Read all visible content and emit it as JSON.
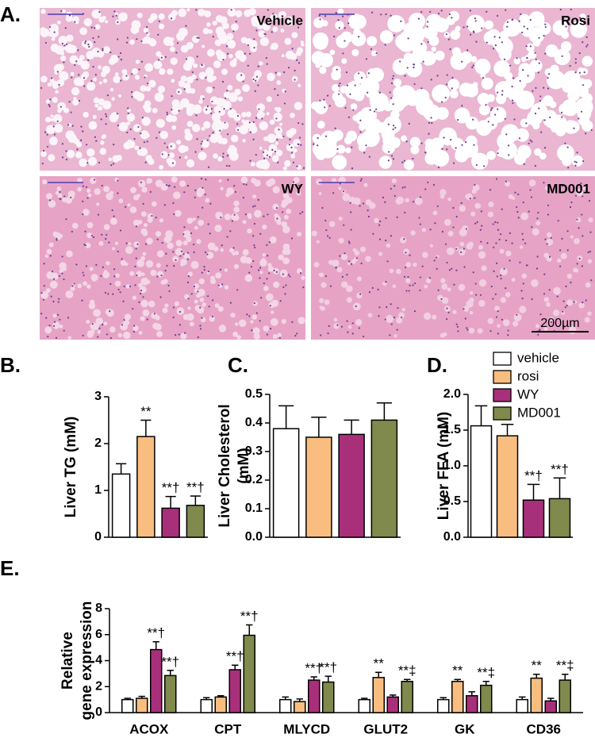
{
  "figure": {
    "panel_labels": [
      "A.",
      "B.",
      "C.",
      "D.",
      "E."
    ],
    "image_labels": [
      "Vehicle",
      "Rosi",
      "WY",
      "MD001"
    ],
    "scale_bar": "200µm"
  },
  "chart_data": [
    {
      "type": "bar",
      "ylabel": [
        "Liver  TG (mM)"
      ],
      "ylim": [
        0,
        3
      ],
      "yticks": [
        0,
        1,
        2,
        3
      ],
      "series": [
        {
          "name": "vehicle",
          "color": "#ffffff",
          "values": [
            1.35
          ],
          "errors": [
            0.22
          ],
          "significance": [
            null
          ]
        },
        {
          "name": "rosi",
          "color": "#f9be7f",
          "values": [
            2.15
          ],
          "errors": [
            0.35
          ],
          "significance": [
            "**"
          ]
        },
        {
          "name": "WY",
          "color": "#a8307a",
          "values": [
            0.62
          ],
          "errors": [
            0.25
          ],
          "significance": [
            "**†"
          ]
        },
        {
          "name": "MD001",
          "color": "#7f8a4c",
          "values": [
            0.68
          ],
          "errors": [
            0.2
          ],
          "significance": [
            "**†"
          ]
        }
      ]
    },
    {
      "type": "bar",
      "ylabel": [
        "Liver Cholesterol",
        "(mM)"
      ],
      "ylim": [
        0,
        0.5
      ],
      "yticks": [
        {
          "value": 0,
          "label": "0.0"
        },
        0.1,
        0.2,
        0.3,
        0.4,
        0.5
      ],
      "series": [
        {
          "name": "vehicle",
          "color": "#ffffff",
          "values": [
            0.38
          ],
          "errors": [
            0.08
          ],
          "significance": [
            null
          ]
        },
        {
          "name": "rosi",
          "color": "#f9be7f",
          "values": [
            0.35
          ],
          "errors": [
            0.07
          ],
          "significance": [
            null
          ]
        },
        {
          "name": "WY",
          "color": "#a8307a",
          "values": [
            0.36
          ],
          "errors": [
            0.05
          ],
          "significance": [
            null
          ]
        },
        {
          "name": "MD001",
          "color": "#7f8a4c",
          "values": [
            0.41
          ],
          "errors": [
            0.06
          ],
          "significance": [
            null
          ]
        }
      ]
    },
    {
      "type": "bar",
      "ylabel": [
        "Liver FFA (mM)"
      ],
      "ylim": [
        0,
        2
      ],
      "yticks": [
        {
          "value": 0,
          "label": "0.0"
        },
        0.5,
        {
          "value": 1,
          "label": "1.0"
        },
        1.5,
        {
          "value": 2,
          "label": "2.0"
        }
      ],
      "legend": "top-right",
      "series": [
        {
          "name": "vehicle",
          "color": "#ffffff",
          "values": [
            1.56
          ],
          "errors": [
            0.28
          ],
          "significance": [
            null
          ]
        },
        {
          "name": "rosi",
          "color": "#f9be7f",
          "values": [
            1.42
          ],
          "errors": [
            0.16
          ],
          "significance": [
            null
          ]
        },
        {
          "name": "WY",
          "color": "#a8307a",
          "values": [
            0.52
          ],
          "errors": [
            0.22
          ],
          "significance": [
            "**†"
          ]
        },
        {
          "name": "MD001",
          "color": "#7f8a4c",
          "values": [
            0.54
          ],
          "errors": [
            0.29
          ],
          "significance": [
            "**†"
          ]
        }
      ]
    },
    {
      "type": "bar",
      "ylabel": [
        "Relative",
        "gene expression"
      ],
      "ylim": [
        0,
        8
      ],
      "yticks": [
        0,
        2,
        4,
        6,
        8
      ],
      "categories": [
        "ACOX",
        "CPT",
        "MLYCD",
        "GLUT2",
        "GK",
        "CD36"
      ],
      "series": [
        {
          "name": "vehicle",
          "color": "#ffffff",
          "values": [
            1.0,
            1.0,
            1.0,
            1.0,
            1.0,
            1.0
          ],
          "errors": [
            0.1,
            0.15,
            0.2,
            0.1,
            0.15,
            0.2
          ],
          "significance": [
            null,
            null,
            null,
            null,
            null,
            null
          ]
        },
        {
          "name": "rosi",
          "color": "#f9be7f",
          "values": [
            1.1,
            1.2,
            0.85,
            2.7,
            2.4,
            2.65
          ],
          "errors": [
            0.15,
            0.1,
            0.2,
            0.4,
            0.15,
            0.3
          ],
          "significance": [
            null,
            null,
            null,
            "**",
            "**",
            "**"
          ]
        },
        {
          "name": "WY",
          "color": "#a8307a",
          "values": [
            4.85,
            3.3,
            2.5,
            1.2,
            1.3,
            0.9
          ],
          "errors": [
            0.6,
            0.35,
            0.25,
            0.15,
            0.3,
            0.2
          ],
          "significance": [
            "**†",
            "**†",
            "**†",
            null,
            null,
            null
          ]
        },
        {
          "name": "MD001",
          "color": "#7f8a4c",
          "values": [
            2.85,
            5.95,
            2.35,
            2.4,
            2.1,
            2.5
          ],
          "errors": [
            0.4,
            0.8,
            0.45,
            0.15,
            0.3,
            0.45
          ],
          "significance": [
            "**†",
            "**†",
            "**†",
            "**‡",
            "**‡",
            "**‡"
          ]
        }
      ]
    }
  ]
}
